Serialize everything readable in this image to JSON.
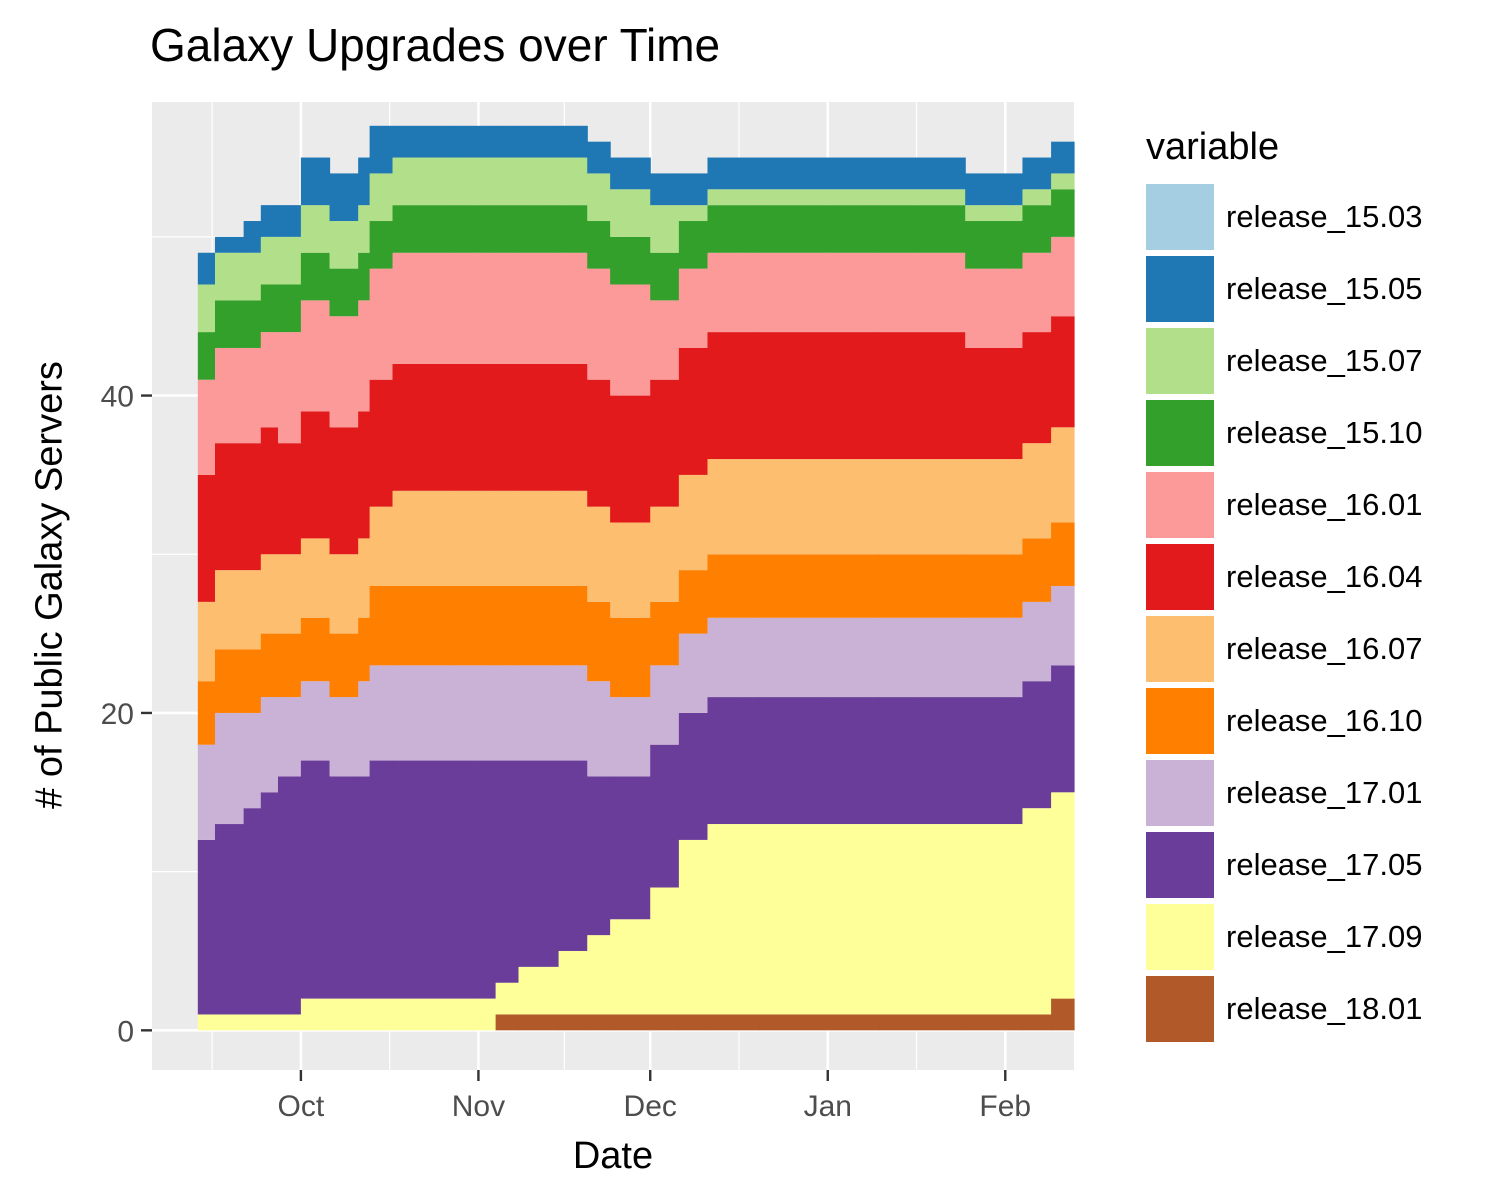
{
  "chart_data": {
    "type": "area",
    "title": "Galaxy Upgrades over Time",
    "xlabel": "Date",
    "ylabel": "# of Public Galaxy Servers",
    "x_ticks": [
      "Oct",
      "Nov",
      "Dec",
      "Jan",
      "Feb"
    ],
    "y_ticks": [
      0,
      20,
      40
    ],
    "ylim": [
      -2.5,
      58.5
    ],
    "xlim": [
      "2017-09-05",
      "2018-02-13"
    ],
    "grid": true,
    "stacked": true,
    "legend_title": "variable",
    "legend_position": "right",
    "x": [
      "2017-09-13",
      "2017-09-16",
      "2017-09-21",
      "2017-09-24",
      "2017-09-27",
      "2017-10-01",
      "2017-10-06",
      "2017-10-11",
      "2017-10-13",
      "2017-10-17",
      "2017-10-27",
      "2017-11-04",
      "2017-11-08",
      "2017-11-15",
      "2017-11-20",
      "2017-11-24",
      "2017-12-01",
      "2017-12-06",
      "2017-12-11",
      "2017-12-20",
      "2018-01-10",
      "2018-01-25",
      "2018-02-04",
      "2018-02-09"
    ],
    "series": [
      {
        "name": "release_15.03",
        "color": "#A6CEE3",
        "values": [
          0,
          0,
          0,
          0,
          0,
          0,
          0,
          0,
          0,
          0,
          0,
          0,
          0,
          0,
          0,
          0,
          0,
          0,
          0,
          0,
          0,
          0,
          0,
          0
        ]
      },
      {
        "name": "release_15.05",
        "color": "#1F78B4",
        "values": [
          2,
          1,
          2,
          2,
          2,
          3,
          3,
          3,
          3,
          2,
          2,
          2,
          2,
          2,
          2,
          2,
          2,
          2,
          2,
          2,
          2,
          2,
          2,
          2
        ]
      },
      {
        "name": "release_15.07",
        "color": "#B2DF8A",
        "values": [
          3,
          3,
          3,
          3,
          3,
          3,
          3,
          3,
          3,
          3,
          3,
          3,
          3,
          3,
          3,
          3,
          3,
          1,
          1,
          1,
          1,
          1,
          1,
          1
        ]
      },
      {
        "name": "release_15.10",
        "color": "#33A02C",
        "values": [
          3,
          3,
          3,
          3,
          3,
          3,
          3,
          3,
          3,
          3,
          3,
          3,
          3,
          3,
          3,
          3,
          3,
          3,
          3,
          3,
          3,
          3,
          3,
          3
        ]
      },
      {
        "name": "release_16.01",
        "color": "#FB9A99",
        "values": [
          6,
          6,
          6,
          6,
          7,
          7,
          7,
          7,
          7,
          7,
          7,
          7,
          7,
          7,
          7,
          7,
          5,
          5,
          5,
          5,
          5,
          5,
          5,
          5
        ]
      },
      {
        "name": "release_16.04",
        "color": "#E31A1C",
        "values": [
          8,
          8,
          8,
          8,
          7,
          8,
          8,
          8,
          8,
          8,
          8,
          8,
          8,
          8,
          8,
          8,
          8,
          8,
          8,
          8,
          8,
          7,
          7,
          7
        ]
      },
      {
        "name": "release_16.07",
        "color": "#FDBF6F",
        "values": [
          5,
          5,
          5,
          5,
          5,
          5,
          5,
          5,
          5,
          6,
          6,
          6,
          6,
          6,
          6,
          6,
          6,
          6,
          6,
          6,
          6,
          6,
          6,
          6
        ]
      },
      {
        "name": "release_16.10",
        "color": "#FF7F00",
        "values": [
          4,
          4,
          4,
          4,
          4,
          4,
          4,
          4,
          5,
          5,
          5,
          5,
          5,
          5,
          5,
          5,
          4,
          4,
          4,
          4,
          4,
          4,
          4,
          4
        ]
      },
      {
        "name": "release_17.01",
        "color": "#CAB2D6",
        "values": [
          6,
          7,
          6,
          6,
          5,
          5,
          5,
          6,
          6,
          6,
          6,
          6,
          6,
          6,
          6,
          5,
          5,
          5,
          5,
          5,
          5,
          5,
          5,
          5
        ]
      },
      {
        "name": "release_17.05",
        "color": "#6A3D9A",
        "values": [
          11,
          12,
          13,
          14,
          15,
          15,
          14,
          14,
          15,
          15,
          15,
          14,
          13,
          12,
          10,
          9,
          9,
          8,
          8,
          8,
          8,
          8,
          8,
          8
        ]
      },
      {
        "name": "release_17.09",
        "color": "#FFFF99",
        "values": [
          1,
          1,
          1,
          1,
          1,
          2,
          2,
          2,
          2,
          2,
          2,
          2,
          3,
          4,
          5,
          6,
          8,
          11,
          12,
          12,
          12,
          12,
          13,
          13
        ]
      },
      {
        "name": "release_18.01",
        "color": "#B15928",
        "values": [
          0,
          0,
          0,
          0,
          0,
          0,
          0,
          0,
          0,
          0,
          0,
          1,
          1,
          1,
          1,
          1,
          1,
          1,
          1,
          1,
          1,
          1,
          1,
          2
        ]
      }
    ]
  }
}
